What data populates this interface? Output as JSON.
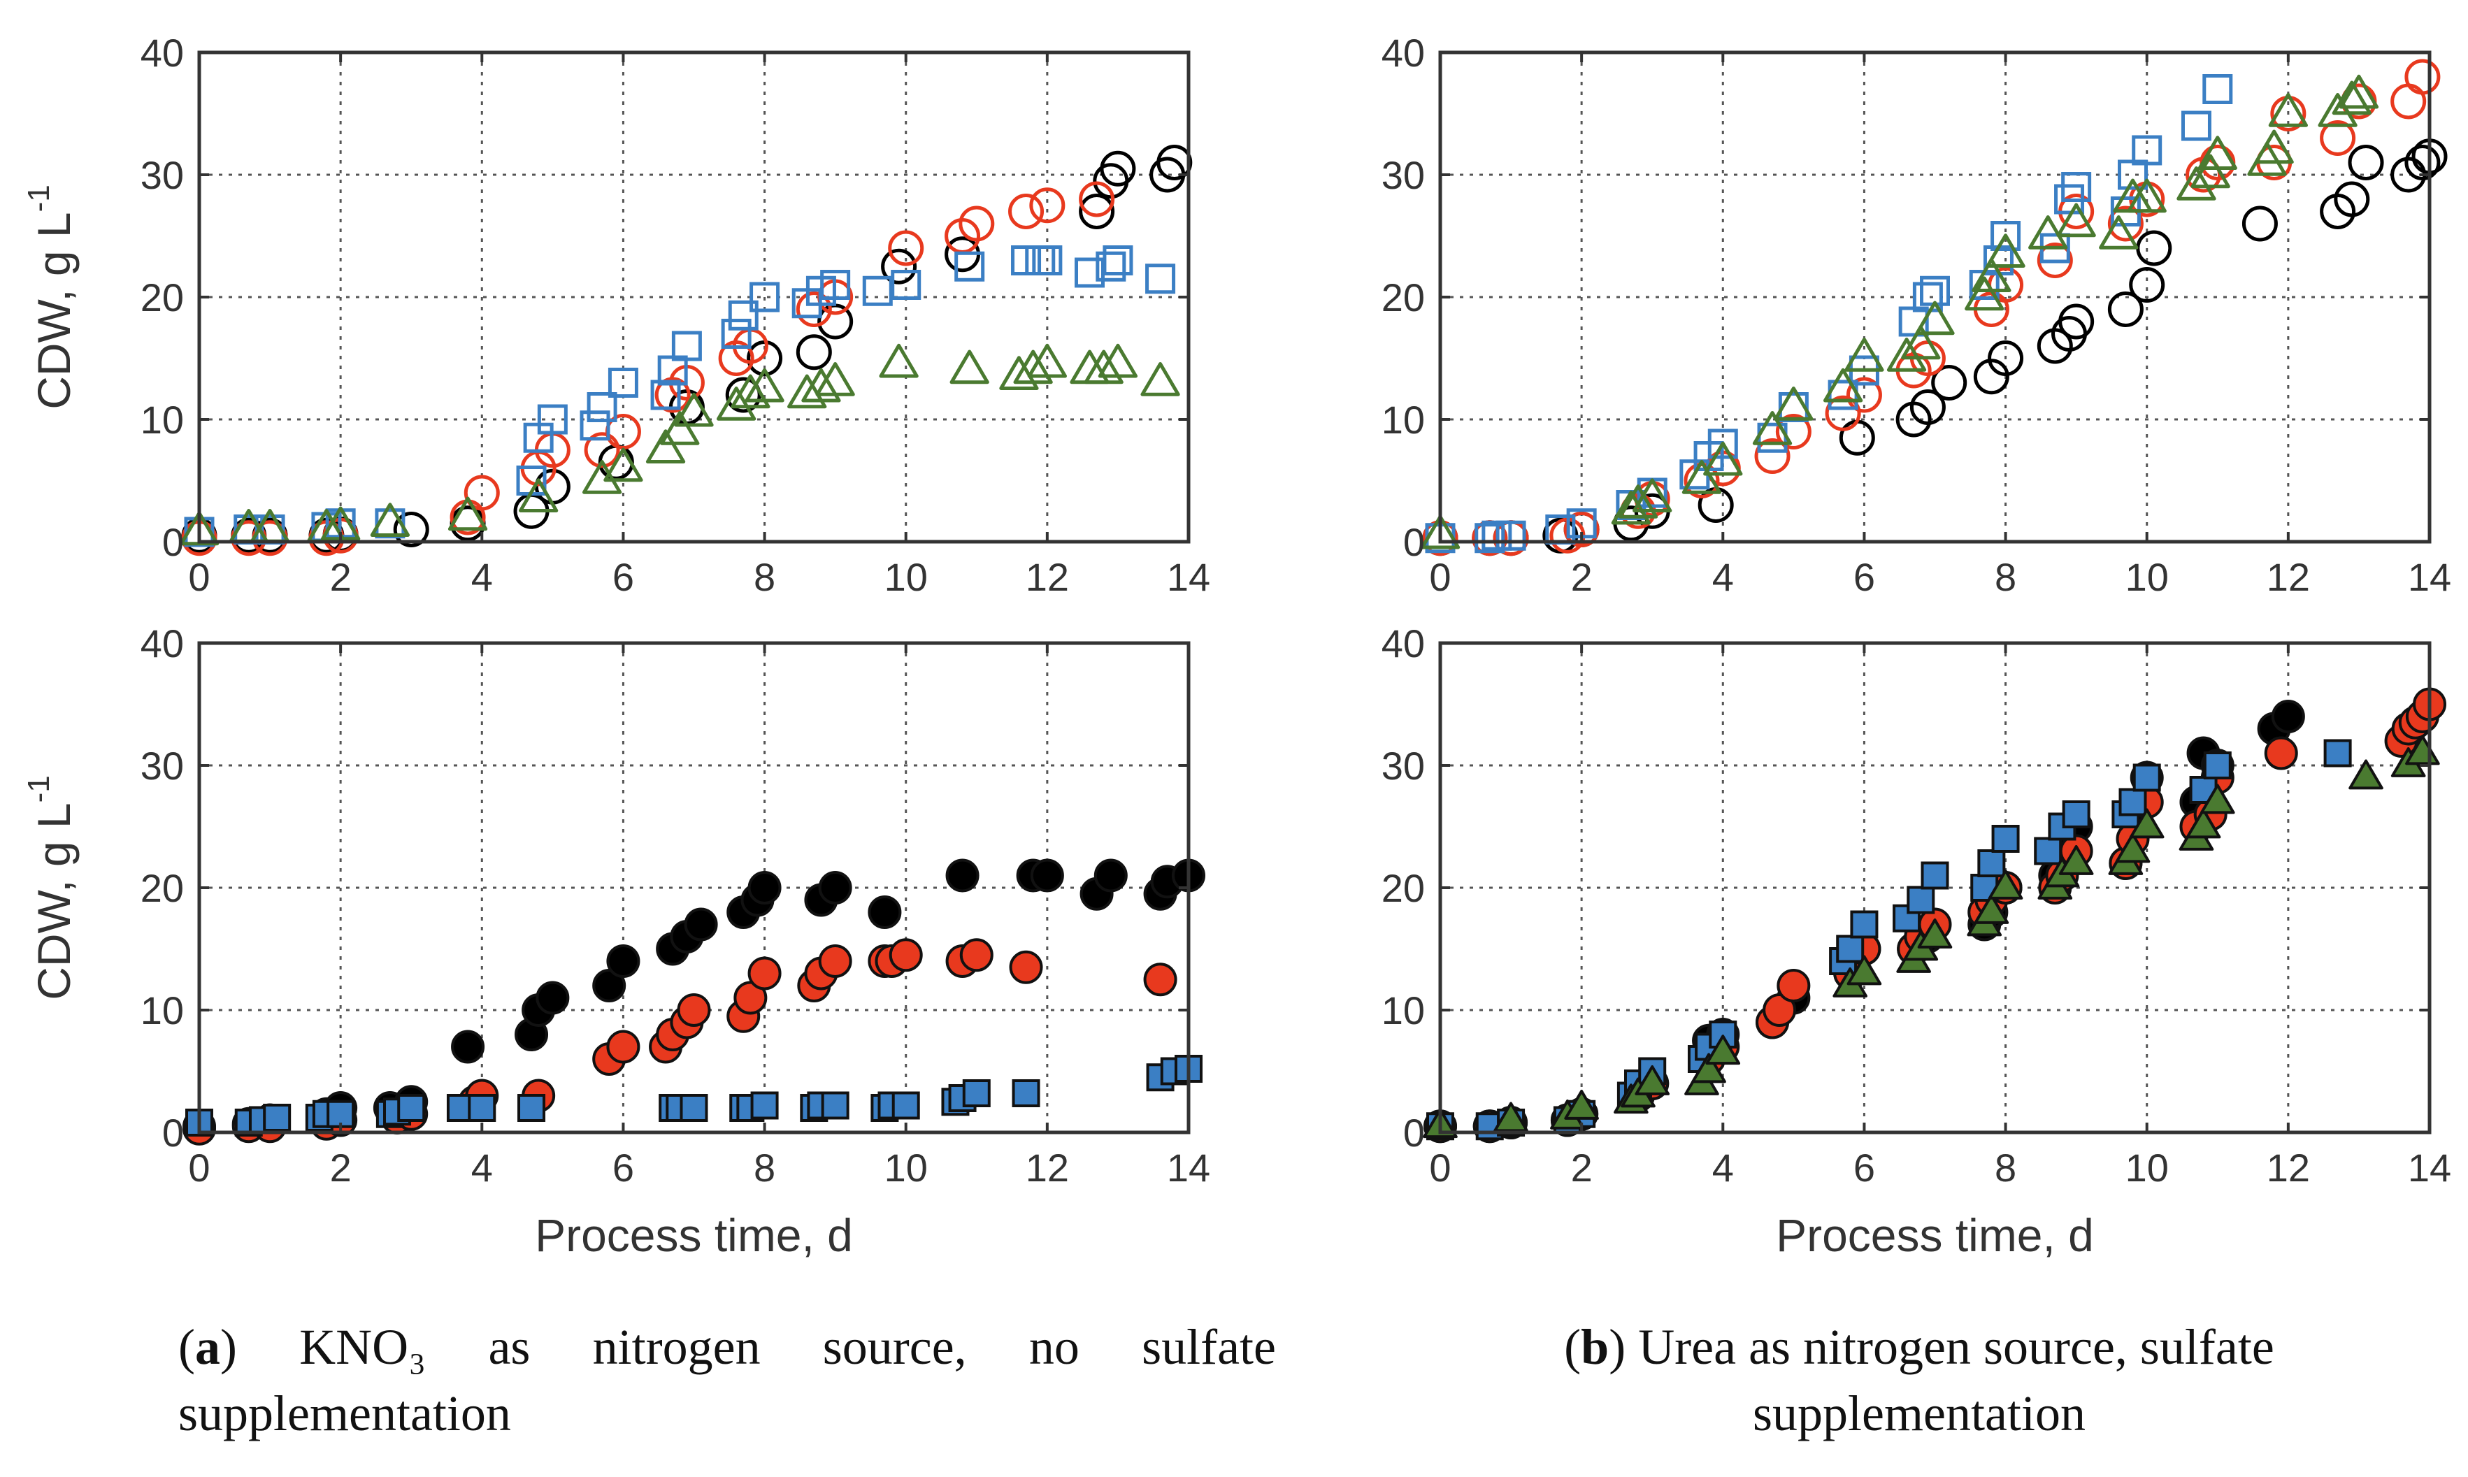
{
  "colors": {
    "black": "#000000",
    "red": "#e8391e",
    "blue": "#3b7fc4",
    "green": "#4a7a30",
    "grid": "#555555",
    "axis": "#333333"
  },
  "captions": {
    "a": {
      "letter": "a",
      "text": "KNO₃ as nitrogen source, no sulfate supplementation"
    },
    "b": {
      "letter": "b",
      "text": "Urea as nitrogen source, sulfate supplementation"
    }
  },
  "chart_data": [
    {
      "id": "a-top",
      "type": "scatter",
      "marker_fill": "open",
      "xlabel": "",
      "ylabel": "CDW, g L-1",
      "xlim": [
        0,
        14
      ],
      "ylim": [
        0,
        40
      ],
      "xticks": [
        "0",
        "2",
        "4",
        "6",
        "8",
        "10",
        "12",
        "14"
      ],
      "yticks": [
        "0",
        "10",
        "20",
        "30",
        "40"
      ],
      "grid": true,
      "series": [
        {
          "name": "black",
          "marker": "circle",
          "x": [
            0,
            0.7,
            1,
            1.8,
            2,
            3,
            3.8,
            4.7,
            5,
            5.9,
            6.9,
            7.7,
            8,
            8.7,
            9,
            9.9,
            10.8,
            12.7,
            12.9,
            13,
            13.7,
            13.8
          ],
          "y": [
            0.5,
            0.5,
            0.5,
            0.5,
            0.6,
            1,
            1.5,
            2.5,
            4.5,
            6.5,
            11,
            12,
            15,
            15.5,
            18,
            22.5,
            23.5,
            27,
            29.5,
            30.5,
            30,
            31
          ]
        },
        {
          "name": "red",
          "marker": "circle",
          "x": [
            0,
            0.7,
            1,
            1.8,
            2,
            3.8,
            4,
            4.8,
            5,
            5.7,
            6,
            6.7,
            6.9,
            7.6,
            7.8,
            8.7,
            9,
            10,
            10.8,
            11,
            11.7,
            12,
            12.7
          ],
          "y": [
            0.3,
            0.3,
            0.3,
            0.3,
            0.5,
            2,
            4,
            6,
            7.5,
            7.5,
            9,
            12,
            13,
            15,
            16,
            19,
            20,
            24,
            25,
            26,
            27,
            27.5,
            28
          ]
        },
        {
          "name": "blue",
          "marker": "square",
          "x": [
            0,
            0.7,
            1,
            1.8,
            2,
            2.7,
            4.7,
            4.8,
            5,
            5.6,
            5.7,
            6,
            6.6,
            6.7,
            6.9,
            7.6,
            7.7,
            8,
            8.6,
            8.8,
            9,
            9.6,
            10,
            10.9,
            11.7,
            11.9,
            12,
            12.6,
            12.9,
            13,
            13.6
          ],
          "y": [
            0.8,
            1,
            1,
            1.2,
            1.5,
            1.5,
            5,
            8.5,
            10,
            9.5,
            11,
            13,
            12,
            14,
            16,
            17,
            18.5,
            20,
            19.5,
            20.5,
            21,
            20.5,
            21,
            22.5,
            23,
            23,
            23,
            22,
            22.5,
            23,
            21.5
          ]
        },
        {
          "name": "green",
          "marker": "triangle",
          "x": [
            0,
            0.7,
            1,
            1.8,
            2,
            2.7,
            3.8,
            4.8,
            5.7,
            6,
            6.6,
            6.8,
            7,
            7.6,
            7.8,
            8,
            8.6,
            8.8,
            9,
            9.9,
            10.9,
            11.6,
            11.8,
            12,
            12.6,
            12.8,
            13,
            13.6
          ],
          "y": [
            0.8,
            1,
            1,
            1,
            1.2,
            1.5,
            2,
            3.5,
            5,
            6,
            7.5,
            9,
            10.5,
            11,
            12,
            12.5,
            12,
            12.5,
            13,
            14.5,
            14,
            13.5,
            14,
            14.5,
            14,
            14,
            14.5,
            13
          ]
        }
      ]
    },
    {
      "id": "b-top",
      "type": "scatter",
      "marker_fill": "open",
      "xlabel": "",
      "ylabel": "",
      "xlim": [
        0,
        14
      ],
      "ylim": [
        0,
        40
      ],
      "xticks": [
        "0",
        "2",
        "4",
        "6",
        "8",
        "10",
        "12",
        "14"
      ],
      "yticks": [
        "0",
        "10",
        "20",
        "30",
        "40"
      ],
      "grid": true,
      "series": [
        {
          "name": "black",
          "marker": "circle",
          "x": [
            0,
            0.7,
            1,
            1.7,
            2,
            2.7,
            3,
            3.9,
            5.9,
            6.7,
            6.9,
            7.2,
            7.8,
            8,
            8.7,
            8.9,
            9,
            9.7,
            10,
            10.1,
            11.6,
            12.7,
            12.9,
            13.1,
            13.7,
            13.9,
            14
          ],
          "y": [
            0.3,
            0.3,
            0.3,
            0.5,
            1,
            1.5,
            2.5,
            3,
            8.5,
            10,
            11,
            13,
            13.5,
            15,
            16,
            17,
            18,
            19,
            21,
            24,
            26,
            27,
            28,
            31,
            30,
            31,
            31.5
          ]
        },
        {
          "name": "red",
          "marker": "circle",
          "x": [
            0,
            0.7,
            1,
            1.8,
            2,
            2.8,
            3,
            3.7,
            4,
            4.7,
            5,
            5.7,
            6,
            6.7,
            6.9,
            7.8,
            8,
            8.7,
            9,
            9.7,
            10,
            10.8,
            11,
            11.8,
            12,
            12.7,
            13,
            13.7,
            13.9
          ],
          "y": [
            0.3,
            0.3,
            0.3,
            0.5,
            1,
            2.5,
            3.5,
            5,
            6,
            7,
            9,
            10.5,
            12,
            14,
            15,
            19,
            21,
            23,
            27,
            26,
            28,
            30,
            31,
            31,
            35,
            33,
            36,
            36,
            38
          ]
        },
        {
          "name": "blue",
          "marker": "square",
          "x": [
            0,
            0.7,
            0.8,
            1,
            1.7,
            2,
            2.7,
            3,
            3.6,
            3.8,
            4,
            4.7,
            5,
            5.7,
            6,
            6.7,
            6.9,
            7,
            7.7,
            7.9,
            8,
            8.7,
            8.9,
            9,
            9.7,
            9.8,
            10,
            10.7,
            11
          ],
          "y": [
            0.3,
            0.3,
            0.5,
            0.5,
            1,
            1.5,
            3,
            4,
            5.5,
            7,
            8,
            8.5,
            11,
            12,
            14,
            18,
            20,
            20.5,
            21,
            23,
            25,
            24,
            28,
            29,
            27,
            30,
            32,
            34,
            37
          ]
        },
        {
          "name": "green",
          "marker": "triangle",
          "x": [
            0,
            2.7,
            2.8,
            3,
            3.7,
            4,
            4.7,
            5,
            5.7,
            6,
            6.6,
            6.8,
            7,
            7.7,
            7.8,
            8,
            8.6,
            9,
            9.6,
            9.8,
            10,
            10.7,
            10.9,
            11,
            11.7,
            11.8,
            12,
            12.7,
            12.9,
            13
          ],
          "y": [
            0.5,
            2.5,
            3,
            3.5,
            5,
            6.5,
            9,
            11,
            12.5,
            15,
            15,
            16,
            18,
            20,
            21.5,
            23.5,
            25,
            26,
            25,
            28,
            28,
            29,
            30,
            31.5,
            31,
            32,
            35,
            35,
            36,
            36.5
          ]
        }
      ]
    },
    {
      "id": "a-bottom",
      "type": "scatter",
      "marker_fill": "solid",
      "xlabel": "",
      "ylabel": "CDW, g L-1",
      "xlim": [
        0,
        14
      ],
      "ylim": [
        0,
        40
      ],
      "xticks": [
        "0",
        "2",
        "4",
        "6",
        "8",
        "10",
        "12",
        "14"
      ],
      "yticks": [
        "0",
        "10",
        "20",
        "30",
        "40"
      ],
      "grid": true,
      "series": [
        {
          "name": "black",
          "marker": "circle",
          "x": [
            0,
            0.7,
            1,
            1.8,
            2,
            2.7,
            3,
            3.8,
            4.7,
            4.8,
            5,
            5.8,
            6,
            6.7,
            6.9,
            7.1,
            7.7,
            7.9,
            8,
            8.8,
            9,
            9.7,
            10.8,
            11.8,
            12,
            12.7,
            12.9,
            13.6,
            13.7,
            14
          ],
          "y": [
            0.5,
            0.7,
            1,
            1.5,
            2,
            2,
            2.5,
            7,
            8,
            10,
            11,
            12,
            14,
            15,
            16,
            17,
            18,
            19,
            20,
            19,
            20,
            18,
            21,
            21,
            21,
            19.5,
            21,
            19.5,
            20.5,
            21
          ]
        },
        {
          "name": "red",
          "marker": "circle",
          "x": [
            0,
            0.7,
            1,
            1.8,
            2,
            2.8,
            3,
            3.9,
            4,
            4.8,
            5.8,
            6,
            6.6,
            6.7,
            6.9,
            7,
            7.7,
            7.8,
            8,
            8.7,
            8.8,
            9,
            9.7,
            9.8,
            10,
            10.8,
            11,
            11.7,
            13.6
          ],
          "y": [
            0.3,
            0.5,
            0.5,
            0.7,
            1,
            1.2,
            1.5,
            2.5,
            3,
            3,
            6,
            7,
            7,
            8,
            9,
            10,
            9.5,
            11,
            13,
            12,
            13,
            14,
            14,
            14,
            14.5,
            14,
            14.5,
            13.5,
            12.5
          ]
        },
        {
          "name": "blue",
          "marker": "square",
          "x": [
            0,
            0.7,
            0.9,
            1.1,
            1.7,
            1.8,
            2,
            2.7,
            2.8,
            3,
            3.7,
            4,
            4.7,
            6.7,
            6.8,
            7,
            7.7,
            7.8,
            8,
            8.7,
            8.8,
            9,
            9.7,
            9.8,
            10,
            10.7,
            10.8,
            11,
            11.7,
            13.6,
            13.8,
            14
          ],
          "y": [
            0.8,
            0.8,
            1,
            1.2,
            1.2,
            1.5,
            1.5,
            1.5,
            1.7,
            2,
            2,
            2,
            2,
            2,
            2,
            2,
            2,
            2,
            2.2,
            2,
            2.2,
            2.2,
            2,
            2.2,
            2.2,
            2.5,
            2.8,
            3.2,
            3.2,
            4.5,
            5,
            5.2
          ]
        }
      ]
    },
    {
      "id": "b-bottom",
      "type": "scatter",
      "marker_fill": "solid",
      "xlabel": "Process time, d",
      "ylabel": "",
      "xlim": [
        0,
        14
      ],
      "ylim": [
        0,
        40
      ],
      "xticks": [
        "0",
        "2",
        "4",
        "6",
        "8",
        "10",
        "12",
        "14"
      ],
      "yticks": [
        "0",
        "10",
        "20",
        "30",
        "40"
      ],
      "grid": true,
      "series": [
        {
          "name": "black",
          "marker": "circle",
          "x": [
            0,
            0.7,
            1,
            1.8,
            2,
            2.8,
            3,
            3.8,
            4,
            4.7,
            5,
            5.8,
            6,
            6.7,
            6.9,
            7.7,
            7.8,
            8,
            8.7,
            8.8,
            9,
            9.7,
            9.8,
            10,
            10.7,
            10.8,
            11,
            11.8,
            12
          ],
          "y": [
            0.5,
            0.5,
            0.8,
            1,
            1.5,
            3,
            4,
            7.5,
            8,
            9,
            11,
            13,
            15,
            15,
            16,
            17,
            18,
            20,
            21,
            23,
            25,
            22,
            26,
            29,
            27,
            31,
            30,
            33,
            34
          ]
        },
        {
          "name": "red",
          "marker": "circle",
          "x": [
            0,
            0.7,
            1,
            1.8,
            2,
            2.8,
            3,
            3.8,
            4,
            4.7,
            4.8,
            5,
            5.8,
            6,
            6.7,
            6.8,
            7,
            7.7,
            7.8,
            8,
            8.7,
            8.8,
            9,
            9.7,
            9.8,
            10,
            10.7,
            10.9,
            11,
            11.9,
            13.6,
            13.7,
            13.8,
            13.9,
            14
          ],
          "y": [
            0.5,
            0.5,
            0.8,
            1,
            1.5,
            3,
            4,
            6,
            7,
            9,
            10,
            12,
            13,
            15,
            15,
            16,
            17,
            18,
            19,
            20,
            20,
            21,
            23,
            22,
            24,
            27,
            25,
            26,
            29,
            31,
            32,
            33,
            33.5,
            34,
            35
          ]
        },
        {
          "name": "blue",
          "marker": "square",
          "x": [
            0,
            0.7,
            1,
            1.8,
            2,
            2.7,
            2.8,
            3,
            3.7,
            3.8,
            4,
            5.7,
            5.8,
            6,
            6.6,
            6.8,
            7,
            7.7,
            7.8,
            8,
            8.6,
            8.8,
            9,
            9.7,
            9.8,
            10,
            10.8,
            11,
            12.7
          ],
          "y": [
            0.5,
            0.5,
            0.8,
            1,
            1.5,
            3,
            4,
            5,
            6,
            7,
            8,
            14,
            15,
            17,
            17.5,
            19,
            21,
            20,
            22,
            24,
            23,
            25,
            26,
            26,
            27,
            29,
            28,
            30,
            31
          ]
        },
        {
          "name": "green",
          "marker": "triangle",
          "x": [
            0,
            1,
            1.8,
            2,
            2.7,
            2.8,
            3,
            3.7,
            3.8,
            4,
            5.8,
            6,
            6.7,
            6.8,
            7,
            7.7,
            7.8,
            8,
            8.7,
            8.8,
            9,
            9.7,
            9.8,
            10,
            10.7,
            10.8,
            11,
            13.1,
            13.7,
            13.9
          ],
          "y": [
            0.5,
            1,
            1.2,
            2,
            2.5,
            3,
            4,
            4,
            5,
            6.5,
            12,
            13,
            14,
            15,
            16,
            17,
            18,
            20,
            20,
            21,
            22,
            22,
            23,
            25,
            24,
            25,
            27,
            29,
            30,
            31
          ]
        }
      ]
    }
  ]
}
